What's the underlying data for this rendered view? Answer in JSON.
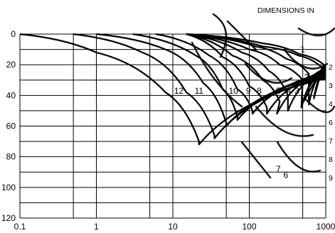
{
  "heading": "DIMENSIONS IN",
  "chart_data": {
    "type": "line",
    "x_scale": "log",
    "xlim": [
      0.1,
      1000
    ],
    "ylim": [
      0,
      120
    ],
    "y_inverted": true,
    "grid": true,
    "legend": "none",
    "x_ticks": [
      {
        "value": 0.1,
        "label": "0.1"
      },
      {
        "value": 1,
        "label": "1"
      },
      {
        "value": 10,
        "label": "10"
      },
      {
        "value": 100,
        "label": "100"
      },
      {
        "value": 1000,
        "label": "1000"
      }
    ],
    "y_ticks": [
      {
        "value": 0,
        "label": "0"
      },
      {
        "value": 20,
        "label": "20"
      },
      {
        "value": 40,
        "label": "40"
      },
      {
        "value": 60,
        "label": "60"
      },
      {
        "value": 80,
        "label": "80"
      },
      {
        "value": 100,
        "label": "100"
      },
      {
        "value": 120,
        "label": "120"
      }
    ],
    "series": [
      {
        "name": "1",
        "label_at": [
          500,
          10
        ],
        "x": [
          15,
          150,
          450,
          950
        ],
        "y": [
          0,
          6,
          13,
          20
        ],
        "notch": [
          500,
          45
        ],
        "rise_to": [
          1000,
          21
        ]
      },
      {
        "name": "2",
        "label_at": [
          560,
          28
        ],
        "x": [
          15,
          150,
          440,
          900
        ],
        "y": [
          0,
          8,
          14,
          22
        ],
        "notch": [
          700,
          42
        ],
        "rise_to": [
          1000,
          21
        ]
      },
      {
        "name": "3",
        "label_at": [
          420,
          37
        ],
        "x": [
          15,
          120,
          300,
          600
        ],
        "y": [
          0,
          8,
          16,
          26
        ],
        "notch": [
          600,
          46
        ],
        "rise_to": [
          1000,
          21
        ]
      },
      {
        "name": "4",
        "label_at": [
          330,
          37
        ],
        "x": [
          15,
          100,
          250,
          500
        ],
        "y": [
          0,
          10,
          20,
          30
        ],
        "notch": [
          480,
          48
        ],
        "rise_to": [
          1000,
          22
        ]
      },
      {
        "name": "5",
        "label_at": [
          240,
          37
        ],
        "x": [
          15,
          80,
          180,
          320
        ],
        "y": [
          0,
          12,
          24,
          40
        ],
        "notch": [
          320,
          50
        ],
        "rise_to": [
          1000,
          22
        ]
      },
      {
        "name": "6",
        "label_at": [
          300,
          92
        ],
        "x": [
          15,
          60,
          150,
          250
        ],
        "y": [
          0,
          14,
          30,
          44
        ],
        "notch": [
          230,
          52
        ],
        "rise_to": [
          1000,
          23
        ]
      },
      {
        "name": "7",
        "label_at": [
          240,
          88
        ],
        "x": [
          15,
          45,
          100,
          170
        ],
        "y": [
          0,
          15,
          34,
          48
        ],
        "notch": [
          170,
          52
        ],
        "rise_to": [
          1000,
          24
        ]
      },
      {
        "name": "8",
        "label_at": [
          135,
          37
        ],
        "x": [
          6,
          30,
          70,
          110
        ],
        "y": [
          0,
          14,
          36,
          50
        ],
        "notch": [
          110,
          52
        ],
        "rise_to": [
          1000,
          25
        ]
      },
      {
        "name": "9",
        "label_at": [
          97,
          37
        ],
        "x": [
          3,
          20,
          45,
          70
        ],
        "y": [
          0,
          14,
          36,
          54
        ],
        "notch": [
          70,
          56
        ],
        "rise_to": [
          1000,
          26
        ]
      },
      {
        "name": "10",
        "label_at": [
          62,
          37
        ],
        "x": [
          1,
          8,
          25,
          50
        ],
        "y": [
          0,
          10,
          32,
          58
        ],
        "notch": [
          50,
          60
        ],
        "rise_to": [
          1000,
          27
        ]
      },
      {
        "name": "11",
        "label_at": [
          22,
          37
        ],
        "x": [
          0.5,
          4,
          15,
          35
        ],
        "y": [
          0,
          12,
          38,
          66
        ],
        "notch": [
          35,
          68
        ],
        "rise_to": [
          1000,
          28
        ]
      },
      {
        "name": "12",
        "label_at": [
          12,
          37
        ],
        "x": [
          0.1,
          1,
          8,
          22
        ],
        "y": [
          0,
          12,
          38,
          70
        ],
        "notch": [
          22,
          72
        ],
        "rise_to": [
          1000,
          29
        ]
      }
    ],
    "right_edge_labels": [
      "2",
      "3",
      "4",
      "6",
      "7",
      "8",
      "9"
    ]
  }
}
